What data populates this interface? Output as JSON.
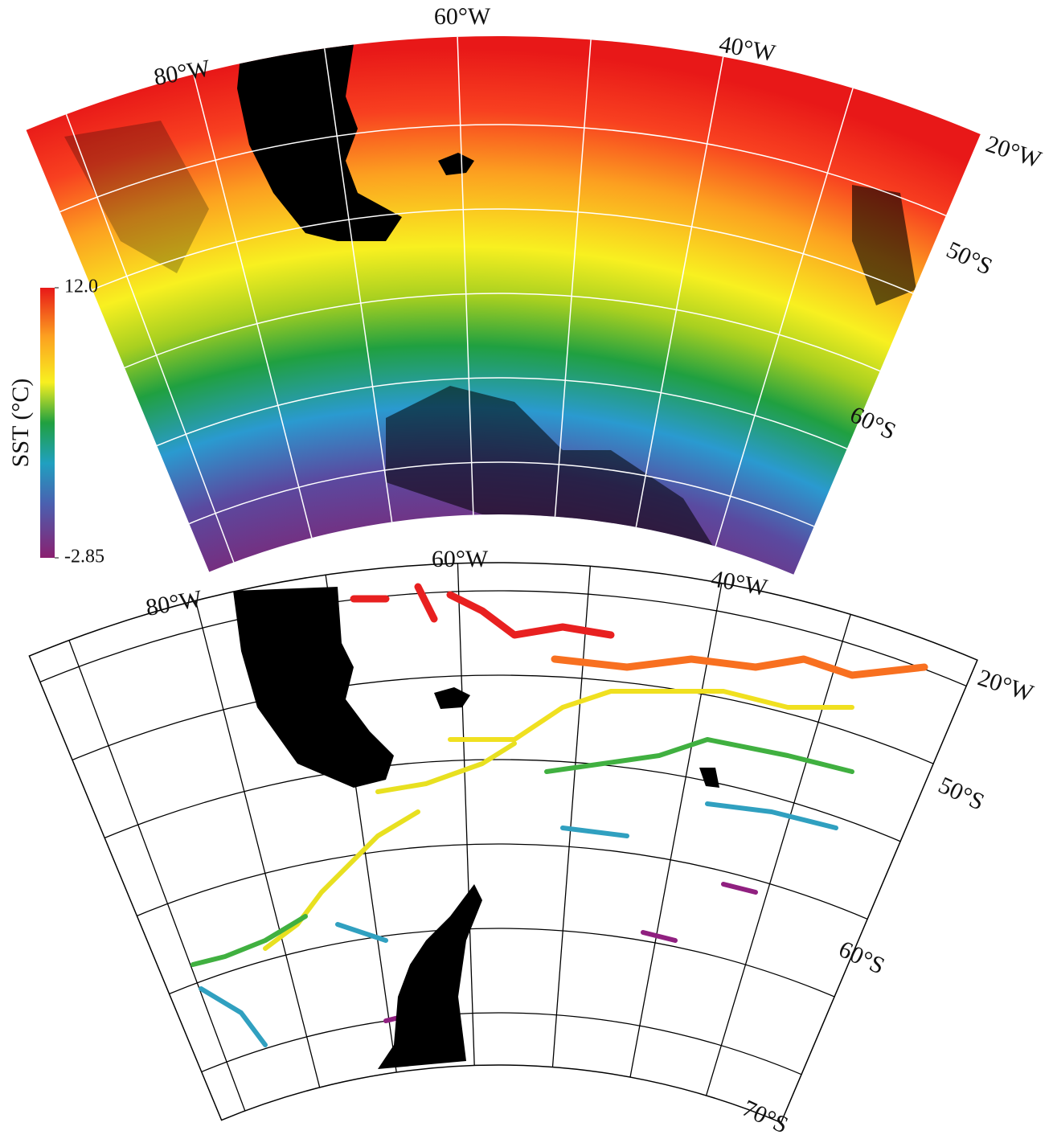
{
  "top_map": {
    "labels": [
      "60°W",
      "80°W",
      "40°W",
      "20°W",
      "50°S",
      "60°S"
    ]
  },
  "colorbar": {
    "title": "SST (°C)",
    "ticks": [
      {
        "value": 12,
        "label": "12.0"
      },
      {
        "value": -2.85,
        "label": "-2.85"
      }
    ]
  },
  "bottom_map": {
    "labels": [
      "60°W",
      "80°W",
      "40°W",
      "20°W",
      "50°S",
      "60°S",
      "70°S"
    ]
  }
}
